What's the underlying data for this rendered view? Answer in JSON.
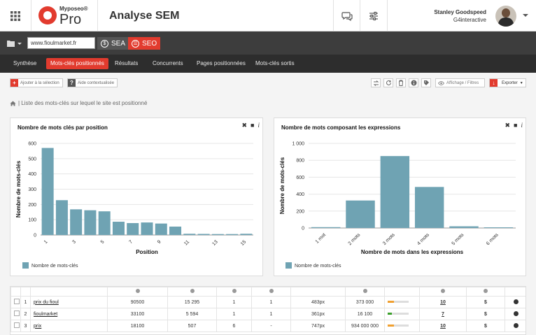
{
  "app": {
    "brand": "Myposeo®",
    "product": "Pro",
    "page_title": "Analyse SEM"
  },
  "user": {
    "name": "Stanley Goodspeed",
    "org": "G4interactive"
  },
  "urlbar": {
    "url_value": "www.fioulmarket.fr",
    "modes": [
      {
        "label": "SEA",
        "symbol": "$"
      },
      {
        "label": "SEO",
        "symbol": "☰"
      }
    ]
  },
  "tabs": [
    {
      "label": "Synthèse",
      "active": false
    },
    {
      "label": "Mots-clés positionnés",
      "active": true
    },
    {
      "label": "Résultats",
      "active": false
    },
    {
      "label": "Concurrents",
      "active": false
    },
    {
      "label": "Pages positionnées",
      "active": false
    },
    {
      "label": "Mots-clés sortis",
      "active": false
    }
  ],
  "toolbar": {
    "add_selection": "Ajouter à la sélection",
    "help": "Aide contextualisée",
    "filters": "Affichage / Filtres",
    "export": "Exporter"
  },
  "breadcrumb": "| Liste des mots-clés sur lequel le site est positionné",
  "charts": {
    "left": {
      "title": "Nombre de mots clés par position"
    },
    "right": {
      "title": "Nombre de mots composant les expressions"
    }
  },
  "chart_data": [
    {
      "type": "bar",
      "title": "Nombre de mots clés par position",
      "xlabel": "Position",
      "ylabel": "Nombre de mots-clés",
      "categories": [
        "1",
        "2",
        "3",
        "4",
        "5",
        "6",
        "7",
        "8",
        "9",
        "10",
        "11",
        "12",
        "13",
        "14",
        "15"
      ],
      "x_tick_labels": [
        "1",
        "3",
        "5",
        "7",
        "9",
        "11",
        "13",
        "15"
      ],
      "y_ticks": [
        "0",
        "100",
        "200",
        "300",
        "400",
        "500",
        "600"
      ],
      "values": [
        570,
        228,
        168,
        162,
        155,
        87,
        78,
        82,
        75,
        55,
        8,
        7,
        6,
        6,
        8
      ],
      "ylim": [
        0,
        600
      ],
      "series": [
        {
          "name": "Nombre de mots-clés",
          "values": [
            570,
            228,
            168,
            162,
            155,
            87,
            78,
            82,
            75,
            55,
            8,
            7,
            6,
            6,
            8
          ]
        }
      ],
      "legend": "bottom-left",
      "grid": true,
      "color": "#6fa3b3"
    },
    {
      "type": "bar",
      "title": "Nombre de mots composant les expressions",
      "xlabel": "Nombre de mots dans les expressions",
      "ylabel": "Nombre de mots-clés",
      "categories": [
        "1 mot",
        "2 mots",
        "3 mots",
        "4 mots",
        "5 mots",
        "6 mots"
      ],
      "y_ticks": [
        "0",
        "200",
        "400",
        "600",
        "800",
        "1 000"
      ],
      "values": [
        10,
        325,
        850,
        485,
        20,
        8
      ],
      "ylim": [
        0,
        1000
      ],
      "series": [
        {
          "name": "Nombre de mots-clés",
          "values": [
            10,
            325,
            850,
            485,
            20,
            8
          ]
        }
      ],
      "legend": "bottom-left",
      "grid": true,
      "color": "#6fa3b3"
    }
  ],
  "table": {
    "rows": [
      {
        "n": "1",
        "keyword": "prix du fioul",
        "volume": "90500",
        "results": "15 295",
        "pos": "1",
        "best": "1",
        "px": "483px",
        "traffic": "373 000",
        "bar_pct": 0.3,
        "bar_color": "#f0a030",
        "count": "10",
        "cost": "$"
      },
      {
        "n": "2",
        "keyword": "fioulmarket",
        "volume": "33100",
        "results": "5 594",
        "pos": "1",
        "best": "1",
        "px": "361px",
        "traffic": "16 100",
        "bar_pct": 0.2,
        "bar_color": "#3aa02a",
        "count": "7",
        "cost": "$"
      },
      {
        "n": "3",
        "keyword": "prix",
        "volume": "18100",
        "results": "507",
        "pos": "6",
        "best": "-",
        "px": "747px",
        "traffic": "934 000 000",
        "bar_pct": 0.3,
        "bar_color": "#f0a030",
        "count": "10",
        "cost": "$"
      }
    ]
  }
}
